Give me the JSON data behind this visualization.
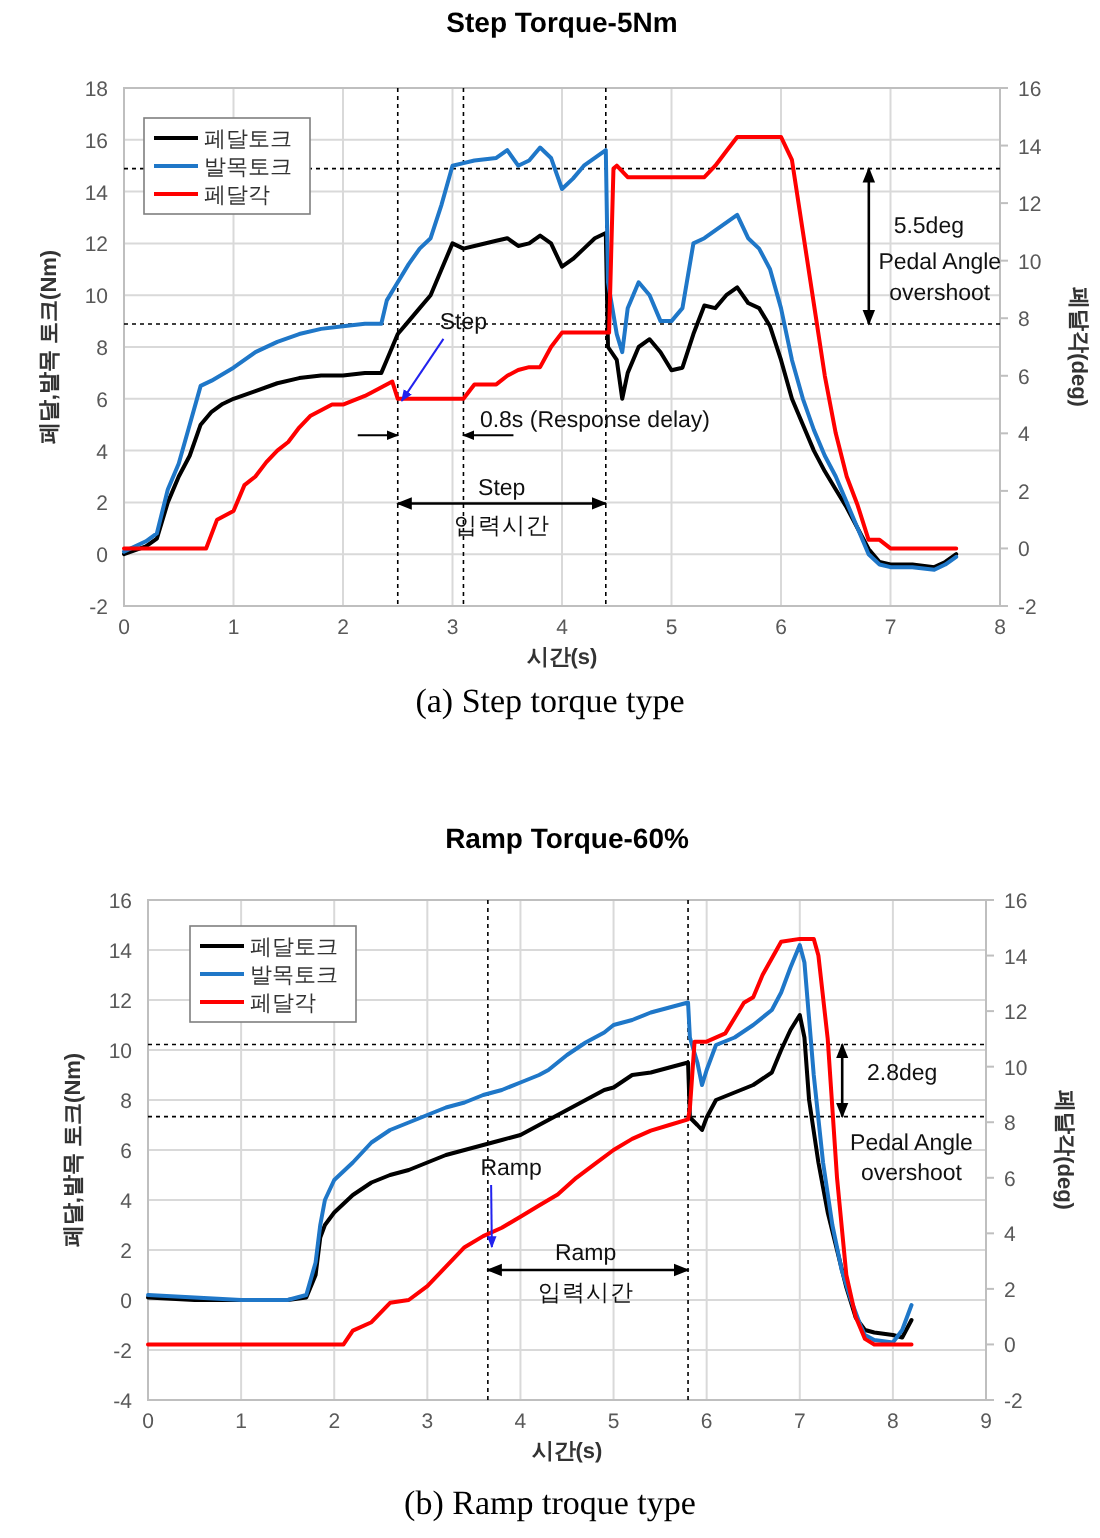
{
  "chart_data": [
    {
      "type": "line",
      "title": "Step Torque-5Nm",
      "xlabel": "시간(s)",
      "ylabel": "페달,발목 토크(Nm)",
      "y2label": "페달각(deg)",
      "xlim": [
        0,
        8
      ],
      "xticks": [
        0,
        1,
        2,
        3,
        4,
        5,
        6,
        7,
        8
      ],
      "ylim": [
        -2,
        18
      ],
      "yticks": [
        -2,
        0,
        2,
        4,
        6,
        8,
        10,
        12,
        14,
        16,
        18
      ],
      "y2lim": [
        -2,
        16
      ],
      "y2ticks": [
        -2,
        0,
        2,
        4,
        6,
        8,
        10,
        12,
        14,
        16
      ],
      "grid": true,
      "legend": "top left",
      "line_style": "solid",
      "series": [
        {
          "name": "페달토크",
          "color": "#000000",
          "x": [
            0,
            0.2,
            0.3,
            0.4,
            0.5,
            0.6,
            0.7,
            0.8,
            0.9,
            1.0,
            1.2,
            1.4,
            1.6,
            1.8,
            2.0,
            2.2,
            2.35,
            2.4,
            2.5,
            2.6,
            2.7,
            2.8,
            2.9,
            3.0,
            3.1,
            3.2,
            3.4,
            3.5,
            3.6,
            3.7,
            3.8,
            3.9,
            4.0,
            4.1,
            4.2,
            4.3,
            4.4,
            4.42,
            4.5,
            4.55,
            4.6,
            4.7,
            4.8,
            4.9,
            5.0,
            5.1,
            5.2,
            5.3,
            5.4,
            5.5,
            5.6,
            5.7,
            5.8,
            5.9,
            6.0,
            6.1,
            6.2,
            6.3,
            6.4,
            6.5,
            6.6,
            6.7,
            6.8,
            6.9,
            7.0,
            7.2,
            7.4,
            7.5,
            7.6
          ],
          "values": [
            0,
            0.3,
            0.6,
            2,
            3,
            3.8,
            5,
            5.5,
            5.8,
            6,
            6.3,
            6.6,
            6.8,
            6.9,
            6.9,
            7,
            7,
            7.5,
            8.5,
            9,
            9.5,
            10,
            11,
            12,
            11.8,
            11.9,
            12.1,
            12.2,
            11.9,
            12,
            12.3,
            12,
            11.1,
            11.4,
            11.8,
            12.2,
            12.4,
            8,
            7.5,
            6,
            7,
            8,
            8.3,
            7.8,
            7.1,
            7.2,
            8.5,
            9.6,
            9.5,
            10,
            10.3,
            9.7,
            9.5,
            8.8,
            7.5,
            6,
            5,
            4,
            3.2,
            2.5,
            1.8,
            1,
            0.2,
            -0.3,
            -0.4,
            -0.4,
            -0.5,
            -0.3,
            0
          ]
        },
        {
          "name": "발목토크",
          "color": "#1f77c8",
          "x": [
            0,
            0.2,
            0.3,
            0.4,
            0.5,
            0.6,
            0.7,
            0.8,
            1.0,
            1.2,
            1.4,
            1.6,
            1.8,
            2.0,
            2.2,
            2.35,
            2.4,
            2.5,
            2.6,
            2.7,
            2.8,
            2.9,
            3.0,
            3.1,
            3.2,
            3.4,
            3.5,
            3.6,
            3.7,
            3.8,
            3.9,
            4.0,
            4.1,
            4.2,
            4.3,
            4.4,
            4.42,
            4.5,
            4.55,
            4.6,
            4.7,
            4.8,
            4.9,
            5.0,
            5.1,
            5.2,
            5.3,
            5.4,
            5.5,
            5.6,
            5.7,
            5.8,
            5.9,
            6.0,
            6.1,
            6.2,
            6.3,
            6.4,
            6.5,
            6.6,
            6.7,
            6.8,
            6.9,
            7.0,
            7.2,
            7.4,
            7.5,
            7.6
          ],
          "values": [
            0.1,
            0.5,
            0.8,
            2.5,
            3.5,
            5,
            6.5,
            6.7,
            7.2,
            7.8,
            8.2,
            8.5,
            8.7,
            8.8,
            8.9,
            8.9,
            9.8,
            10.5,
            11.2,
            11.8,
            12.2,
            13.5,
            15,
            15.1,
            15.2,
            15.3,
            15.6,
            15,
            15.2,
            15.7,
            15.3,
            14.1,
            14.5,
            15,
            15.3,
            15.6,
            10.5,
            8.5,
            7.8,
            9.5,
            10.5,
            10,
            9,
            9,
            9.5,
            12,
            12.2,
            12.5,
            12.8,
            13.1,
            12.2,
            11.8,
            11,
            9.5,
            7.5,
            6,
            4.8,
            3.8,
            3,
            2,
            1,
            0,
            -0.4,
            -0.5,
            -0.5,
            -0.6,
            -0.4,
            -0.1
          ]
        },
        {
          "name": "페달각",
          "color": "#ff0000",
          "axis": "y2",
          "x": [
            0,
            0.75,
            0.85,
            1.0,
            1.1,
            1.2,
            1.3,
            1.4,
            1.5,
            1.6,
            1.7,
            1.8,
            1.9,
            2.0,
            2.2,
            2.3,
            2.45,
            2.5,
            3.1,
            3.2,
            3.4,
            3.5,
            3.6,
            3.7,
            3.8,
            3.9,
            4.0,
            4.43,
            4.47,
            4.5,
            4.6,
            5.3,
            5.4,
            5.5,
            5.6,
            6.0,
            6.1,
            6.2,
            6.3,
            6.4,
            6.5,
            6.6,
            6.7,
            6.8,
            6.9,
            7.0,
            7.6
          ],
          "values": [
            0,
            0,
            1,
            1.3,
            2.2,
            2.5,
            3,
            3.4,
            3.7,
            4.2,
            4.6,
            4.8,
            5,
            5,
            5.3,
            5.5,
            5.8,
            5.2,
            5.2,
            5.7,
            5.7,
            6,
            6.2,
            6.3,
            6.3,
            7,
            7.5,
            7.5,
            13.2,
            13.3,
            12.9,
            12.9,
            13.3,
            13.8,
            14.3,
            14.3,
            13.5,
            11,
            8.5,
            6,
            4,
            2.5,
            1.5,
            0.3,
            0.3,
            0,
            0
          ]
        }
      ],
      "ref_lines": [
        {
          "axis": "x",
          "value": 2.5,
          "line_style": "dotted",
          "color": "#000000"
        },
        {
          "axis": "x",
          "value": 3.1,
          "line_style": "dotted",
          "color": "#000000"
        },
        {
          "axis": "x",
          "value": 4.4,
          "line_style": "dotted",
          "color": "#000000"
        },
        {
          "axis": "y2",
          "value": 13.2,
          "line_style": "dotted",
          "color": "#000000"
        },
        {
          "axis": "y2",
          "value": 7.8,
          "line_style": "dotted",
          "color": "#000000"
        }
      ],
      "annotations": [
        "Step",
        "0.8s (Response delay)",
        "Step",
        "입력시간",
        "5.5deg",
        "Pedal Angle",
        "overshoot",
        "(a)  Step torque type"
      ]
    },
    {
      "type": "line",
      "title": "Ramp Torque-60%",
      "xlabel": "시간(s)",
      "ylabel": "페달,발목 토크(Nm)",
      "y2label": "페달각(deg)",
      "xlim": [
        0,
        9
      ],
      "xticks": [
        0,
        1,
        2,
        3,
        4,
        5,
        6,
        7,
        8,
        9
      ],
      "ylim": [
        -4,
        16
      ],
      "yticks": [
        -4,
        -2,
        0,
        2,
        4,
        6,
        8,
        10,
        12,
        14,
        16
      ],
      "y2lim": [
        -2,
        16
      ],
      "y2ticks": [
        -2,
        0,
        2,
        4,
        6,
        8,
        10,
        12,
        14,
        16
      ],
      "grid": true,
      "legend": "top left",
      "line_style": "solid",
      "series": [
        {
          "name": "페달토크",
          "color": "#000000",
          "x": [
            0,
            0.5,
            1.0,
            1.5,
            1.7,
            1.8,
            1.85,
            1.9,
            2.0,
            2.2,
            2.4,
            2.6,
            2.8,
            3.0,
            3.2,
            3.4,
            3.6,
            3.8,
            4.0,
            4.2,
            4.3,
            4.5,
            4.7,
            4.9,
            5.0,
            5.2,
            5.4,
            5.6,
            5.8,
            5.82,
            5.9,
            5.95,
            6.0,
            6.1,
            6.3,
            6.5,
            6.7,
            6.8,
            6.9,
            7.0,
            7.05,
            7.1,
            7.2,
            7.3,
            7.4,
            7.5,
            7.6,
            7.7,
            7.8,
            8.0,
            8.1,
            8.2
          ],
          "values": [
            0.1,
            0,
            0,
            0,
            0.1,
            1,
            2.5,
            3,
            3.5,
            4.2,
            4.7,
            5,
            5.2,
            5.5,
            5.8,
            6,
            6.2,
            6.4,
            6.6,
            7,
            7.2,
            7.6,
            8,
            8.4,
            8.5,
            9,
            9.1,
            9.3,
            9.5,
            7.3,
            7,
            6.8,
            7.3,
            8,
            8.3,
            8.6,
            9.1,
            10,
            10.8,
            11.4,
            10.5,
            8,
            5.5,
            3.5,
            2,
            0.5,
            -0.7,
            -1.2,
            -1.3,
            -1.4,
            -1.5,
            -0.8
          ]
        },
        {
          "name": "발목토크",
          "color": "#1f77c8",
          "x": [
            0,
            0.5,
            1.0,
            1.5,
            1.7,
            1.8,
            1.85,
            1.9,
            2.0,
            2.2,
            2.4,
            2.6,
            2.8,
            3.0,
            3.2,
            3.4,
            3.6,
            3.8,
            4.0,
            4.2,
            4.3,
            4.5,
            4.7,
            4.9,
            5.0,
            5.2,
            5.4,
            5.6,
            5.8,
            5.82,
            5.9,
            5.95,
            6.0,
            6.1,
            6.3,
            6.5,
            6.7,
            6.8,
            6.9,
            7.0,
            7.05,
            7.15,
            7.25,
            7.35,
            7.45,
            7.55,
            7.65,
            7.7,
            7.8,
            8.0,
            8.1,
            8.2
          ],
          "values": [
            0.2,
            0.1,
            0,
            0,
            0.2,
            1.5,
            3,
            4,
            4.8,
            5.5,
            6.3,
            6.8,
            7.1,
            7.4,
            7.7,
            7.9,
            8.2,
            8.4,
            8.7,
            9,
            9.2,
            9.8,
            10.3,
            10.7,
            11,
            11.2,
            11.5,
            11.7,
            11.9,
            10.5,
            9.5,
            8.6,
            9.2,
            10.2,
            10.5,
            11,
            11.6,
            12.3,
            13.3,
            14.2,
            13.5,
            9,
            5.5,
            3,
            1.2,
            0,
            -1,
            -1.4,
            -1.6,
            -1.7,
            -1.2,
            -0.2
          ]
        },
        {
          "name": "페달각",
          "color": "#ff0000",
          "axis": "y2",
          "x": [
            0,
            2.1,
            2.2,
            2.4,
            2.6,
            2.8,
            3.0,
            3.2,
            3.4,
            3.6,
            3.8,
            4.0,
            4.2,
            4.4,
            4.6,
            4.8,
            5.0,
            5.2,
            5.4,
            5.6,
            5.8,
            5.82,
            5.87,
            6.0,
            6.2,
            6.4,
            6.5,
            6.6,
            6.8,
            7.0,
            7.15,
            7.2,
            7.3,
            7.4,
            7.5,
            7.6,
            7.7,
            7.8,
            8.2
          ],
          "values": [
            0,
            0,
            0.5,
            0.8,
            1.5,
            1.6,
            2.1,
            2.8,
            3.5,
            3.9,
            4.2,
            4.6,
            5,
            5.4,
            6,
            6.5,
            7,
            7.4,
            7.7,
            7.9,
            8.1,
            8.5,
            10.9,
            10.9,
            11.2,
            12.3,
            12.5,
            13.3,
            14.5,
            14.6,
            14.6,
            14,
            11,
            6,
            2.5,
            1,
            0.2,
            0,
            0
          ]
        }
      ],
      "ref_lines": [
        {
          "axis": "x",
          "value": 3.65,
          "line_style": "dotted",
          "color": "#000000"
        },
        {
          "axis": "x",
          "value": 5.8,
          "line_style": "dotted",
          "color": "#000000"
        },
        {
          "axis": "y2",
          "value": 10.8,
          "line_style": "dotted",
          "color": "#000000"
        },
        {
          "axis": "y2",
          "value": 8.2,
          "line_style": "dotted",
          "color": "#000000"
        }
      ],
      "annotations": [
        "Ramp",
        "Ramp",
        "입력시간",
        "2.8deg",
        "Pedal Angle",
        "overshoot",
        "(b)  Ramp troque type"
      ]
    }
  ]
}
